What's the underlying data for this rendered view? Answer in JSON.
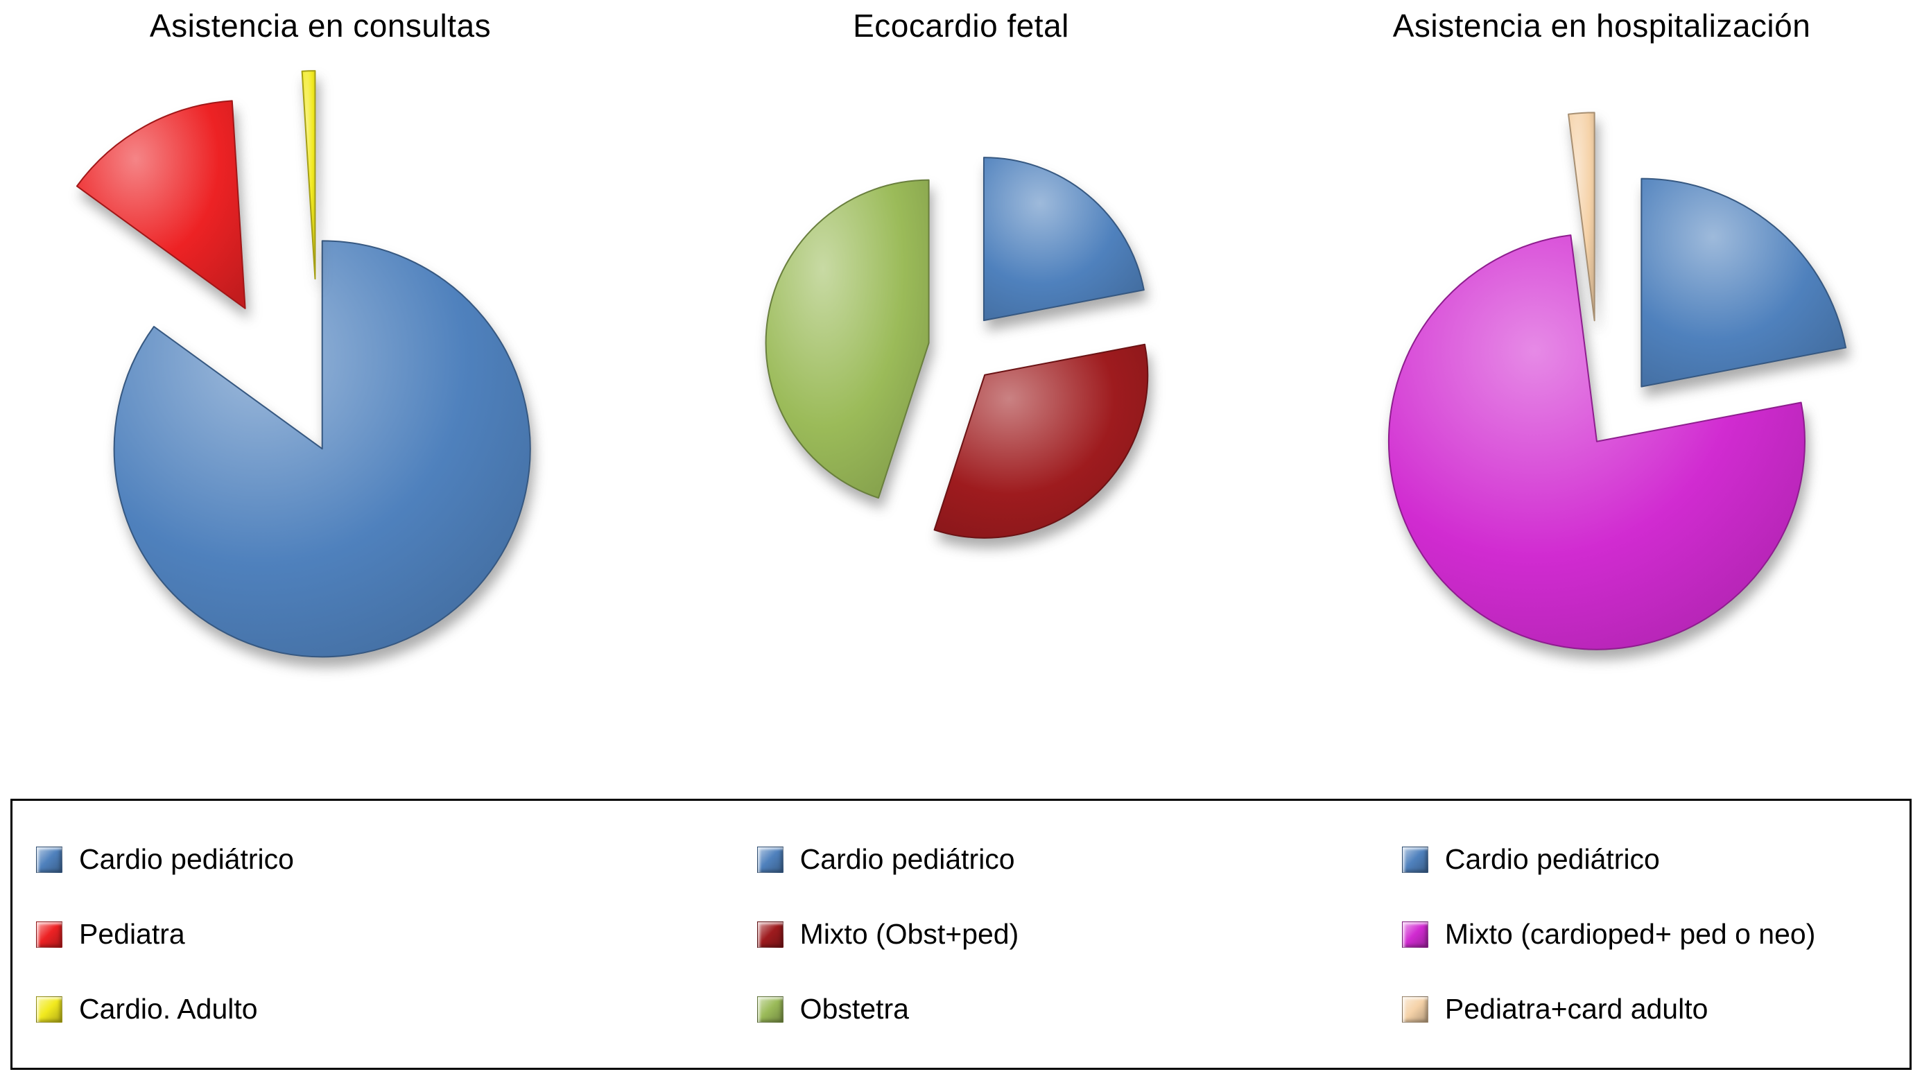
{
  "chart_data": [
    {
      "type": "pie",
      "title": "Asistencia en consultas",
      "units": "percent_estimated",
      "legend_position": "bottom",
      "slices": [
        {
          "label": "Cardio pediátrico",
          "value": 85,
          "color": "#4f81bd",
          "explode": 0.02
        },
        {
          "label": "Pediatra",
          "value": 14,
          "color": "#ed2224",
          "explode": 0.75
        },
        {
          "label": "Cardio. Adulto",
          "value": 1,
          "color": "#f2ea1f",
          "explode": 0.8
        }
      ]
    },
    {
      "type": "pie",
      "title": "Ecocardio fetal",
      "units": "percent_estimated",
      "legend_position": "bottom",
      "slices": [
        {
          "label": "Cardio pediátrico",
          "value": 22,
          "color": "#4f81bd",
          "explode": 0.22
        },
        {
          "label": "Mixto (Obst+ped)",
          "value": 33,
          "color": "#9e1b1e",
          "explode": 0.22
        },
        {
          "label": "Obstetra",
          "value": 45,
          "color": "#9bbb59",
          "explode": 0.2
        }
      ]
    },
    {
      "type": "pie",
      "title": "Asistencia en hospitalización",
      "units": "percent_estimated",
      "legend_position": "bottom",
      "slices": [
        {
          "label": "Cardio pediátrico",
          "value": 22,
          "color": "#4f81bd",
          "explode": 0.3
        },
        {
          "label": "Mixto (cardioped+ ped o neo)",
          "value": 76,
          "color": "#d12bd1",
          "explode": 0.04
        },
        {
          "label": "Pediatra+card adulto",
          "value": 2,
          "color": "#f5d2a8",
          "explode": 0.55
        }
      ]
    }
  ]
}
